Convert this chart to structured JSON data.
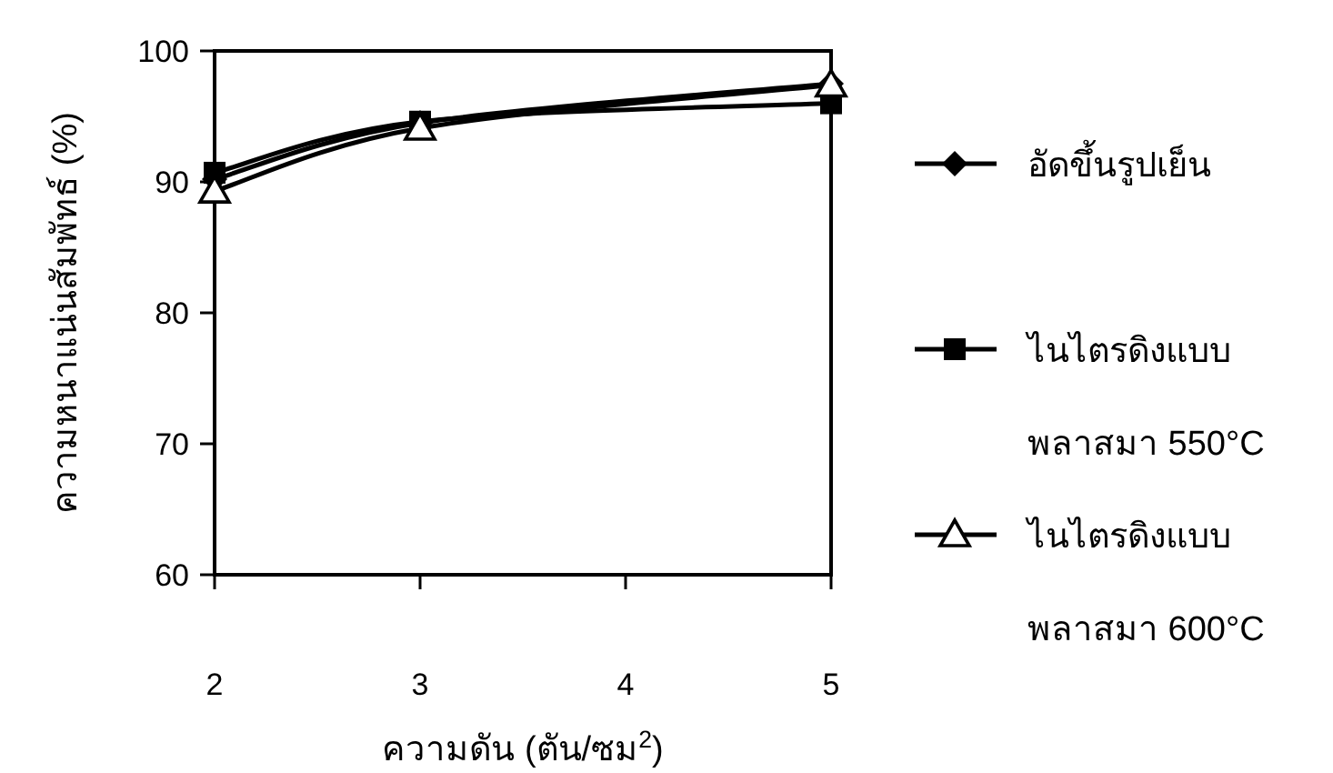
{
  "chart_data": {
    "type": "line",
    "xlabel": "ความดัน (ตัน/ซม$^{2}$)",
    "ylabel": "ความหนาแน่นสัมพัทธ์ (%)",
    "x": [
      2,
      3,
      5
    ],
    "series": [
      {
        "name": "อัดขึ้นรูปเย็น",
        "color": "#000000",
        "marker": "diamond",
        "values": [
          90.2,
          94.5,
          97.5
        ]
      },
      {
        "name": "ไนไตรดิงแบบ\nพลาสมา 550°C",
        "color": "#000000",
        "marker": "square",
        "values": [
          90.7,
          94.6,
          96.0
        ]
      },
      {
        "name": "ไนไตรดิงแบบ\nพลาสมา 600°C",
        "color": "#000000",
        "marker": "triangle",
        "values": [
          89.3,
          94.1,
          97.4
        ]
      }
    ],
    "xlim": [
      2,
      5
    ],
    "xticks": [
      2,
      3,
      4,
      5
    ],
    "ylim": [
      60,
      100
    ],
    "yticks": [
      60,
      70,
      80,
      90,
      100
    ],
    "grid": false,
    "legend": "right"
  }
}
